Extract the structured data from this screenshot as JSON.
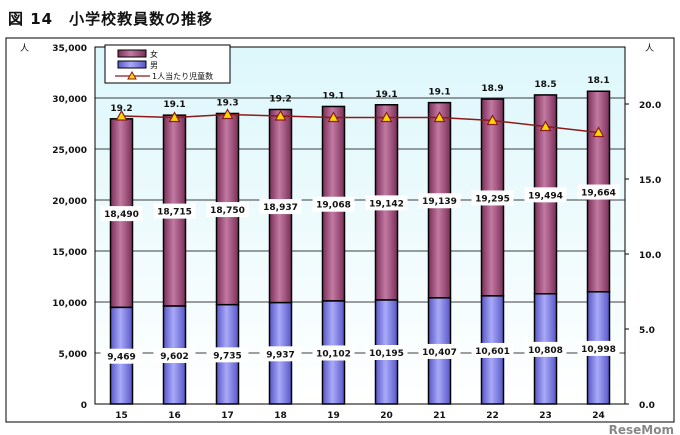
{
  "title": "図 14　小学校教員数の推移",
  "chart_data": {
    "type": "bar",
    "stacked": true,
    "categories": [
      "15",
      "16",
      "17",
      "18",
      "19",
      "20",
      "21",
      "22",
      "23",
      "24"
    ],
    "series": [
      {
        "name": "男",
        "values": [
          9469,
          9602,
          9735,
          9937,
          10102,
          10195,
          10407,
          10601,
          10808,
          10998
        ],
        "color": "#7b7be8",
        "axis": "left"
      },
      {
        "name": "女",
        "values": [
          18490,
          18715,
          18750,
          18937,
          19068,
          19142,
          19139,
          19295,
          19494,
          19664
        ],
        "color": "#9e4a78",
        "axis": "left"
      },
      {
        "name": "1人当たり児童数",
        "type": "line",
        "values": [
          19.2,
          19.1,
          19.3,
          19.2,
          19.1,
          19.1,
          19.1,
          18.9,
          18.5,
          18.1
        ],
        "color": "#8b1a1a",
        "marker_color": "#ffd700",
        "axis": "right"
      }
    ],
    "data_labels_male": [
      "9,469",
      "9,602",
      "9,735",
      "9,937",
      "10,102",
      "10,195",
      "10,407",
      "10,601",
      "10,808",
      "10,998"
    ],
    "data_labels_female": [
      "18,490",
      "18,715",
      "18,750",
      "18,937",
      "19,068",
      "19,142",
      "19,139",
      "19,295",
      "19,494",
      "19,664"
    ],
    "data_labels_ratio": [
      "19.2",
      "19.1",
      "19.3",
      "19.2",
      "19.1",
      "19.1",
      "19.1",
      "18.9",
      "18.5",
      "18.1"
    ],
    "ylabel_left": "人",
    "ylabel_right": "人",
    "ylim_left": [
      0,
      35000
    ],
    "yticks_left": [
      "0",
      "5,000",
      "10,000",
      "15,000",
      "20,000",
      "25,000",
      "30,000",
      "35,000"
    ],
    "ylim_right": [
      0,
      23.8
    ],
    "yticks_right": [
      "0.0",
      "5.0",
      "10.0",
      "15.0",
      "20.0"
    ],
    "grid": true,
    "legend_position": "top-left",
    "legend": [
      "女",
      "男",
      "1人当たり児童数"
    ],
    "watermark": "ReseMom"
  }
}
